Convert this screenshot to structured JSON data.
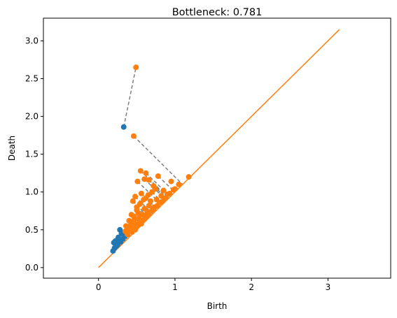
{
  "chart_data": {
    "type": "scatter",
    "title": "Bottleneck: 0.781",
    "xlabel": "Birth",
    "ylabel": "Death",
    "xlim": [
      -0.72,
      3.82
    ],
    "ylim": [
      -0.14,
      3.3
    ],
    "xticks": [
      0,
      1,
      2,
      3
    ],
    "yticks": [
      0.0,
      0.5,
      1.0,
      1.5,
      2.0,
      2.5,
      3.0
    ],
    "grid": false,
    "colors": {
      "series_1": "#1f77b4",
      "series_2": "#ff7f0e",
      "diagonal": "#ff7f0e",
      "matching": "#808080"
    },
    "series": [
      {
        "points": [
          [
            0.33,
            1.86
          ],
          [
            0.28,
            0.5
          ],
          [
            0.22,
            0.35
          ],
          [
            0.2,
            0.33
          ],
          [
            0.24,
            0.36
          ],
          [
            0.26,
            0.4
          ],
          [
            0.3,
            0.45
          ],
          [
            0.21,
            0.26
          ],
          [
            0.19,
            0.22
          ],
          [
            0.25,
            0.3
          ],
          [
            0.32,
            0.38
          ],
          [
            0.35,
            0.42
          ],
          [
            0.38,
            0.44
          ],
          [
            0.23,
            0.28
          ],
          [
            0.29,
            0.34
          ]
        ]
      },
      {
        "points": [
          [
            0.49,
            2.65
          ],
          [
            0.46,
            1.74
          ],
          [
            0.55,
            1.28
          ],
          [
            0.62,
            1.25
          ],
          [
            0.6,
            1.17
          ],
          [
            0.66,
            1.16
          ],
          [
            0.51,
            1.14
          ],
          [
            0.78,
            1.21
          ],
          [
            0.72,
            1.08
          ],
          [
            0.95,
            1.14
          ],
          [
            1.05,
            1.1
          ],
          [
            1.18,
            1.2
          ],
          [
            0.7,
            1.0
          ],
          [
            0.85,
            1.02
          ],
          [
            0.56,
            0.98
          ],
          [
            0.48,
            0.94
          ],
          [
            0.62,
            0.92
          ],
          [
            0.45,
            0.88
          ],
          [
            0.55,
            0.85
          ],
          [
            0.68,
            0.88
          ],
          [
            0.76,
            0.9
          ],
          [
            0.82,
            0.95
          ],
          [
            0.9,
            0.97
          ],
          [
            0.98,
            1.03
          ],
          [
            0.5,
            0.8
          ],
          [
            0.6,
            0.78
          ],
          [
            0.66,
            0.82
          ],
          [
            0.73,
            0.8
          ],
          [
            0.8,
            0.86
          ],
          [
            0.86,
            0.91
          ],
          [
            0.43,
            0.7
          ],
          [
            0.52,
            0.72
          ],
          [
            0.58,
            0.7
          ],
          [
            0.64,
            0.74
          ],
          [
            0.7,
            0.76
          ],
          [
            0.4,
            0.62
          ],
          [
            0.47,
            0.64
          ],
          [
            0.53,
            0.66
          ],
          [
            0.58,
            0.62
          ],
          [
            0.63,
            0.68
          ],
          [
            0.36,
            0.55
          ],
          [
            0.42,
            0.56
          ],
          [
            0.48,
            0.58
          ],
          [
            0.54,
            0.6
          ],
          [
            0.6,
            0.64
          ],
          [
            0.35,
            0.48
          ],
          [
            0.4,
            0.5
          ],
          [
            0.45,
            0.52
          ],
          [
            0.5,
            0.54
          ],
          [
            0.56,
            0.58
          ],
          [
            0.38,
            0.44
          ],
          [
            0.44,
            0.47
          ],
          [
            0.48,
            0.5
          ],
          [
            0.52,
            0.56
          ],
          [
            0.57,
            0.62
          ],
          [
            0.62,
            0.66
          ],
          [
            0.66,
            0.7
          ],
          [
            0.72,
            0.78
          ],
          [
            0.77,
            0.82
          ],
          [
            0.84,
            0.88
          ],
          [
            0.88,
            0.92
          ],
          [
            0.93,
            0.98
          ],
          [
            1.0,
            1.04
          ],
          [
            0.42,
            0.6
          ],
          [
            0.46,
            0.68
          ],
          [
            0.5,
            0.76
          ],
          [
            0.54,
            0.84
          ],
          [
            0.59,
            0.9
          ],
          [
            0.65,
            0.96
          ],
          [
            0.74,
            1.04
          ]
        ]
      }
    ],
    "matching": [
      [
        [
          0.33,
          1.86
        ],
        [
          0.49,
          2.65
        ]
      ],
      [
        [
          0.46,
          1.74
        ],
        [
          1.1,
          1.1
        ]
      ],
      [
        [
          0.55,
          1.28
        ],
        [
          0.92,
          0.92
        ]
      ],
      [
        [
          0.62,
          1.25
        ],
        [
          0.94,
          0.94
        ]
      ],
      [
        [
          0.51,
          1.14
        ],
        [
          0.83,
          0.83
        ]
      ],
      [
        [
          0.66,
          1.16
        ],
        [
          0.91,
          0.91
        ]
      ],
      [
        [
          0.78,
          1.21
        ],
        [
          1.0,
          1.0
        ]
      ],
      [
        [
          0.6,
          1.17
        ],
        [
          0.89,
          0.89
        ]
      ],
      [
        [
          0.72,
          1.08
        ],
        [
          0.9,
          0.9
        ]
      ],
      [
        [
          0.7,
          1.0
        ],
        [
          0.85,
          0.85
        ]
      ],
      [
        [
          0.56,
          0.98
        ],
        [
          0.77,
          0.77
        ]
      ],
      [
        [
          0.48,
          0.94
        ],
        [
          0.71,
          0.71
        ]
      ],
      [
        [
          0.45,
          0.88
        ],
        [
          0.66,
          0.66
        ]
      ],
      [
        [
          0.62,
          0.92
        ],
        [
          0.77,
          0.77
        ]
      ],
      [
        [
          0.28,
          0.5
        ],
        [
          0.39,
          0.39
        ]
      ],
      [
        [
          0.3,
          0.45
        ],
        [
          0.375,
          0.375
        ]
      ],
      [
        [
          0.26,
          0.4
        ],
        [
          0.33,
          0.33
        ]
      ],
      [
        [
          0.5,
          0.8
        ],
        [
          0.65,
          0.65
        ]
      ],
      [
        [
          0.43,
          0.7
        ],
        [
          0.565,
          0.565
        ]
      ],
      [
        [
          0.4,
          0.62
        ],
        [
          0.51,
          0.51
        ]
      ],
      [
        [
          0.36,
          0.55
        ],
        [
          0.455,
          0.455
        ]
      ],
      [
        [
          0.42,
          0.6
        ],
        [
          0.52,
          0.52
        ]
      ]
    ],
    "diagonal": [
      [
        0,
        0
      ],
      [
        3.15,
        3.15
      ]
    ]
  }
}
